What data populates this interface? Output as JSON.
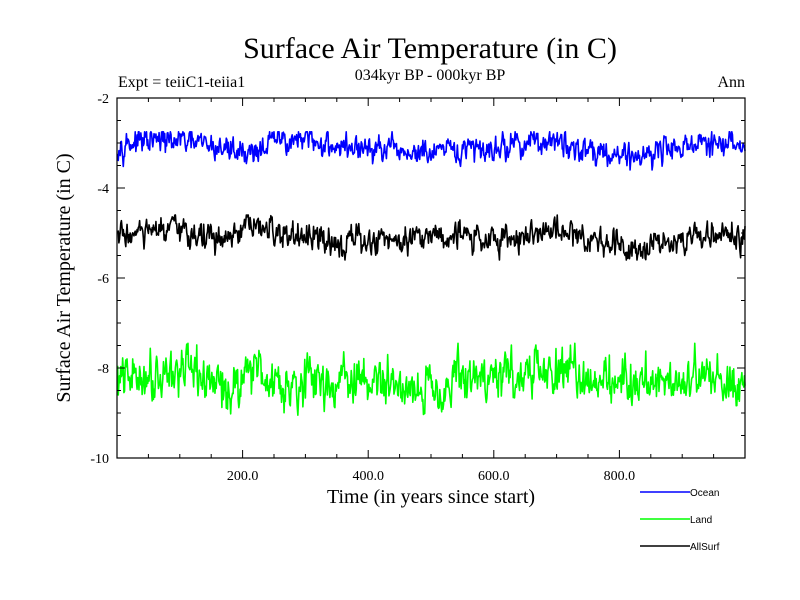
{
  "chart_data": {
    "type": "line",
    "title": "Surface Air Temperature (in C)",
    "subtitle": "034kyr BP - 000kyr BP",
    "left_label": "Expt = teiiC1-teiia1",
    "right_label": "Ann",
    "xlabel": "Time (in years since start)",
    "ylabel": "Surface Air Temperature (in C)",
    "xlim": [
      0,
      1000
    ],
    "ylim": [
      -10,
      -2
    ],
    "x_ticks": [
      {
        "value": 200,
        "label": "200.0"
      },
      {
        "value": 400,
        "label": "400.0"
      },
      {
        "value": 600,
        "label": "600.0"
      },
      {
        "value": 800,
        "label": "800.0"
      }
    ],
    "y_ticks": [
      {
        "value": -2,
        "label": "-2"
      },
      {
        "value": -4,
        "label": "-4"
      },
      {
        "value": -6,
        "label": "-6"
      },
      {
        "value": -8,
        "label": "-8"
      },
      {
        "value": -10,
        "label": "-10"
      }
    ],
    "grid": false,
    "legend_position": "bottom-right",
    "series": [
      {
        "name": "Ocean",
        "color": "#0000ff",
        "mean": -3.05,
        "noise": 0.12,
        "min": -3.6,
        "max": -2.75,
        "anchors": [
          [
            0,
            -3.0
          ],
          [
            100,
            -2.95
          ],
          [
            160,
            -3.1
          ],
          [
            215,
            -3.2
          ],
          [
            260,
            -2.9
          ],
          [
            400,
            -3.15
          ],
          [
            500,
            -3.25
          ],
          [
            600,
            -3.1
          ],
          [
            670,
            -2.95
          ],
          [
            820,
            -3.3
          ],
          [
            900,
            -3.05
          ],
          [
            1000,
            -3.05
          ]
        ]
      },
      {
        "name": "Land",
        "color": "#00ff00",
        "mean": -8.3,
        "noise": 0.22,
        "min": -9.05,
        "max": -7.45,
        "anchors": [
          [
            0,
            -8.3
          ],
          [
            60,
            -8.1
          ],
          [
            100,
            -8.05
          ],
          [
            185,
            -8.5
          ],
          [
            210,
            -7.9
          ],
          [
            250,
            -8.3
          ],
          [
            400,
            -8.3
          ],
          [
            500,
            -8.45
          ],
          [
            560,
            -8.2
          ],
          [
            700,
            -8.1
          ],
          [
            820,
            -8.3
          ],
          [
            900,
            -8.2
          ],
          [
            1000,
            -8.3
          ]
        ]
      },
      {
        "name": "AllSurf",
        "color": "#000000",
        "mean": -5.05,
        "noise": 0.13,
        "min": -5.6,
        "max": -4.6,
        "anchors": [
          [
            0,
            -5.05
          ],
          [
            100,
            -4.95
          ],
          [
            180,
            -5.2
          ],
          [
            210,
            -4.85
          ],
          [
            300,
            -5.15
          ],
          [
            400,
            -5.2
          ],
          [
            500,
            -5.0
          ],
          [
            600,
            -5.15
          ],
          [
            700,
            -4.95
          ],
          [
            820,
            -5.3
          ],
          [
            900,
            -5.1
          ],
          [
            1000,
            -5.05
          ]
        ]
      }
    ]
  }
}
